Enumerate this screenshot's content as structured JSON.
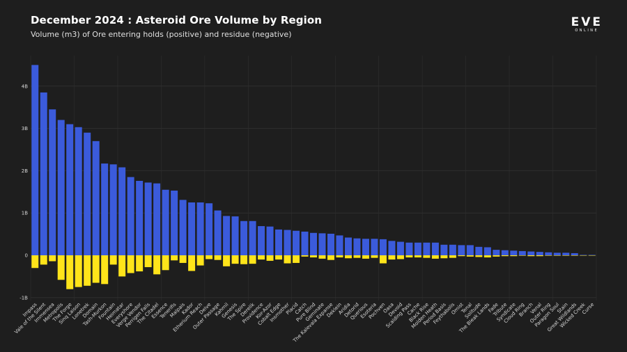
{
  "header": {
    "title": "December 2024 : Asteroid Ore Volume by Region",
    "subtitle": "Volume (m3) of Ore entering holds (positive) and residue (negative)"
  },
  "logo": {
    "main": "EVE",
    "sub": "ONLINE"
  },
  "colors": {
    "background": "#1e1e1e",
    "positive": "#3b5bdb",
    "negative": "#ffe41a",
    "grid": "#2f2f2f"
  },
  "chart_data": {
    "type": "bar",
    "title": "December 2024 : Asteroid Ore Volume by Region",
    "subtitle": "Volume (m3) of Ore entering holds (positive) and residue (negative)",
    "xlabel": "",
    "ylabel": "",
    "ylim": [
      -1.0,
      4.8
    ],
    "unit": "billion m3",
    "yticks": [
      {
        "value": 4,
        "label": "4B"
      },
      {
        "value": 3,
        "label": "3B"
      },
      {
        "value": 2,
        "label": "2B"
      },
      {
        "value": 1,
        "label": "1B"
      },
      {
        "value": 0,
        "label": "0"
      },
      {
        "value": -1,
        "label": "-1B"
      }
    ],
    "categories": [
      "Impass",
      "Vale of the Silent",
      "Immensea",
      "Metropolis",
      "The Forge",
      "Sinq Laison",
      "Lonetrek",
      "Domain",
      "Tash-Murkon",
      "Fountain",
      "Heimatar",
      "Everyshore",
      "Verge Vendor",
      "Perrigen Falls",
      "The Citadel",
      "Essence",
      "Tenerifis",
      "Malpais",
      "Kador",
      "Etherium Reach",
      "Delve",
      "Outer Passage",
      "Kahmil",
      "Genesis",
      "The Spire",
      "Derelik",
      "Providence",
      "Kor-Azor",
      "Cobalt Edge",
      "Insmother",
      "Placid",
      "Catch",
      "Pure Blind",
      "Geminate",
      "The Kalevala Expanse",
      "Deklein",
      "Aridia",
      "Detorid",
      "Querious",
      "Esoteria",
      "Pochven",
      "Oasa",
      "Devoid",
      "Scalding Pass",
      "Cache",
      "Black Rise",
      "Molden Heath",
      "Period Basis",
      "Feythabolis",
      "Omist",
      "Tenal",
      "Solitude",
      "The Bleak Lands",
      "Fade",
      "Tribute",
      "Syndicate",
      "Cloud Ring",
      "Branch",
      "Venal",
      "Outer Ring",
      "Paragon Soul",
      "Stain",
      "Great Wildlands",
      "Wicked Creek",
      "Curse"
    ],
    "series": [
      {
        "name": "Ore entering holds (positive)",
        "color": "#3b5bdb",
        "values": [
          4.5,
          3.85,
          3.45,
          3.2,
          3.1,
          3.03,
          2.9,
          2.7,
          2.17,
          2.15,
          2.08,
          1.85,
          1.76,
          1.72,
          1.7,
          1.55,
          1.53,
          1.31,
          1.25,
          1.25,
          1.23,
          1.06,
          0.93,
          0.92,
          0.81,
          0.81,
          0.69,
          0.68,
          0.61,
          0.6,
          0.58,
          0.56,
          0.53,
          0.52,
          0.51,
          0.47,
          0.42,
          0.4,
          0.39,
          0.39,
          0.38,
          0.34,
          0.32,
          0.3,
          0.3,
          0.3,
          0.3,
          0.25,
          0.25,
          0.24,
          0.24,
          0.2,
          0.19,
          0.13,
          0.12,
          0.11,
          0.1,
          0.09,
          0.08,
          0.07,
          0.06,
          0.06,
          0.05,
          0.01,
          0.01
        ]
      },
      {
        "name": "Residue (negative)",
        "color": "#ffe41a",
        "values": [
          -0.3,
          -0.22,
          -0.14,
          -0.58,
          -0.8,
          -0.75,
          -0.72,
          -0.65,
          -0.68,
          -0.22,
          -0.5,
          -0.42,
          -0.38,
          -0.28,
          -0.45,
          -0.35,
          -0.12,
          -0.18,
          -0.37,
          -0.24,
          -0.09,
          -0.11,
          -0.26,
          -0.2,
          -0.21,
          -0.2,
          -0.1,
          -0.13,
          -0.1,
          -0.19,
          -0.18,
          -0.03,
          -0.05,
          -0.08,
          -0.11,
          -0.05,
          -0.07,
          -0.06,
          -0.08,
          -0.06,
          -0.19,
          -0.1,
          -0.09,
          -0.05,
          -0.05,
          -0.06,
          -0.08,
          -0.07,
          -0.06,
          -0.02,
          -0.03,
          -0.04,
          -0.05,
          -0.03,
          -0.02,
          -0.02,
          -0.01,
          -0.02,
          -0.02,
          -0.01,
          -0.01,
          -0.01,
          -0.01,
          -0.005,
          -0.005
        ]
      }
    ]
  }
}
